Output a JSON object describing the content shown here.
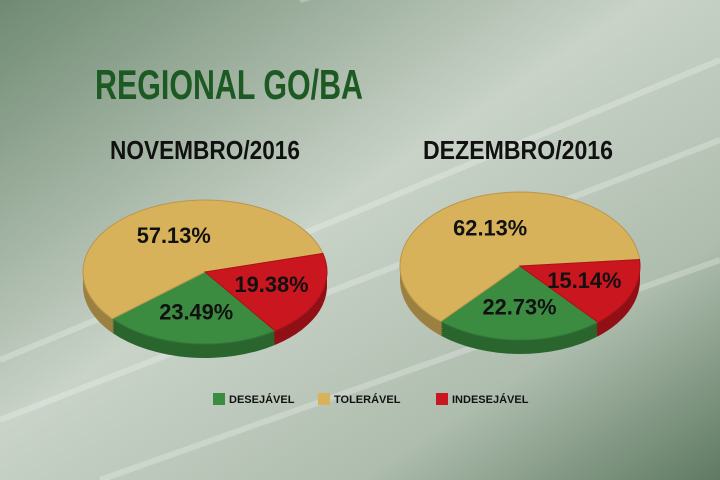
{
  "title": "REGIONAL GO/BA",
  "chart_data": [
    {
      "type": "pie",
      "title": "NOVEMBRO/2016",
      "categories": [
        "DESEJÁVEL",
        "TOLERÁVEL",
        "INDESEJÁVEL"
      ],
      "values": [
        23.49,
        57.13,
        19.38
      ],
      "value_labels": [
        "23.49%",
        "57.13%",
        "19.38%"
      ],
      "colors": [
        "#3b8c40",
        "#d8b25a",
        "#c9161f"
      ]
    },
    {
      "type": "pie",
      "title": "DEZEMBRO/2016",
      "categories": [
        "DESEJÁVEL",
        "TOLERÁVEL",
        "INDESEJÁVEL"
      ],
      "values": [
        22.73,
        62.13,
        15.14
      ],
      "value_labels": [
        "22.73%",
        "62.13%",
        "15.14%"
      ],
      "colors": [
        "#3b8c40",
        "#d8b25a",
        "#c9161f"
      ]
    }
  ]
}
